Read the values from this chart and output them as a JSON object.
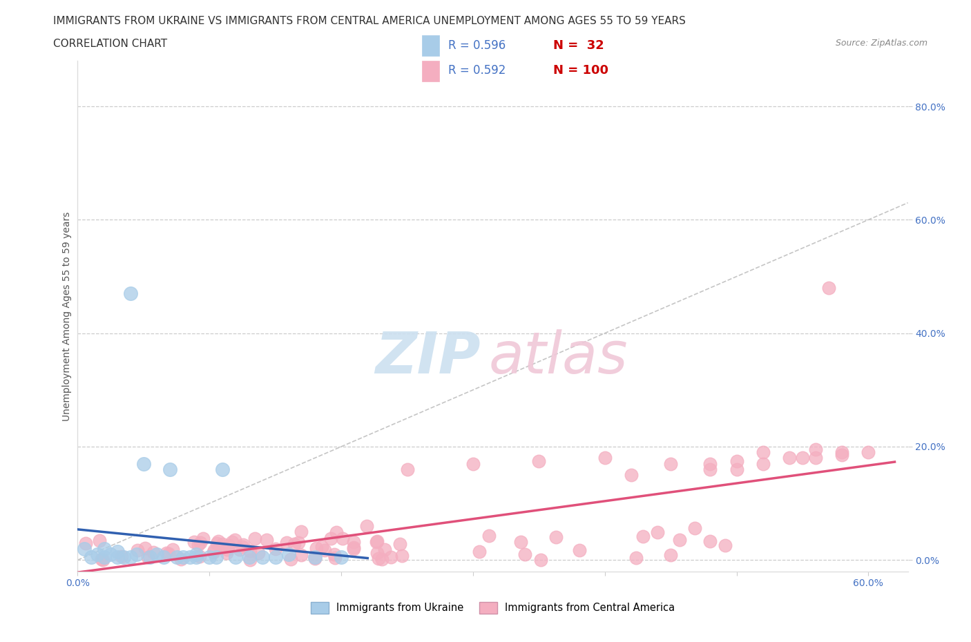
{
  "title_line1": "IMMIGRANTS FROM UKRAINE VS IMMIGRANTS FROM CENTRAL AMERICA UNEMPLOYMENT AMONG AGES 55 TO 59 YEARS",
  "title_line2": "CORRELATION CHART",
  "source_text": "Source: ZipAtlas.com",
  "ylabel": "Unemployment Among Ages 55 to 59 years",
  "xlim": [
    0.0,
    0.63
  ],
  "ylim": [
    -0.02,
    0.88
  ],
  "y_tick_vals": [
    0.0,
    0.2,
    0.4,
    0.6,
    0.8
  ],
  "y_tick_labels": [
    "0.0%",
    "20.0%",
    "40.0%",
    "60.0%",
    "80.0%"
  ],
  "x_tick_vals": [
    0.0,
    0.6
  ],
  "x_tick_labels": [
    "0.0%",
    "60.0%"
  ],
  "ukraine_color": "#a8cce8",
  "ukraine_line_color": "#3060b0",
  "central_color": "#f4aec0",
  "central_line_color": "#e0507a",
  "ukraine_R": 0.596,
  "ukraine_N": 32,
  "central_R": 0.592,
  "central_N": 100,
  "diagonal_color": "#bbbbbb",
  "watermark_zip_color": "#cce0f0",
  "watermark_atlas_color": "#f0c8d8",
  "background_color": "#ffffff",
  "grid_color": "#cccccc",
  "axis_label_color": "#4472c4",
  "legend_r_color": "#4472c4",
  "legend_n_color": "#cc0000",
  "title_color": "#333333",
  "ylabel_color": "#555555",
  "source_color": "#888888"
}
